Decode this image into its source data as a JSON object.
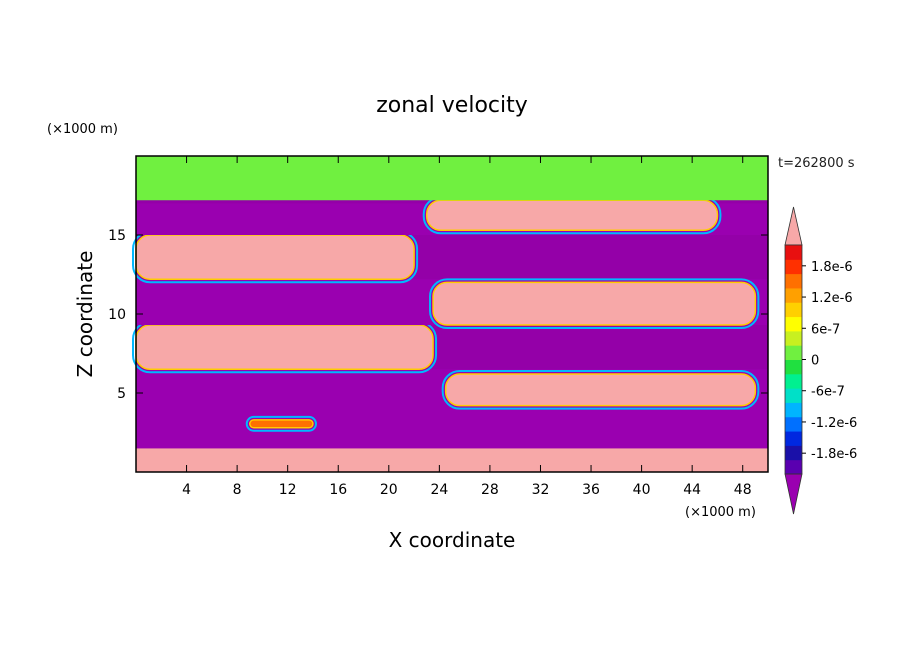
{
  "chart_data": {
    "type": "heatmap",
    "title": "zonal velocity",
    "xlabel": "X coordinate",
    "ylabel": "Z coordinate",
    "x_unit": "(×1000 m)",
    "y_unit": "(×1000 m)",
    "time_label": "t=262800 s",
    "xlim": [
      0,
      50
    ],
    "ylim": [
      0,
      20
    ],
    "x_ticks": [
      "4",
      "8",
      "12",
      "16",
      "20",
      "24",
      "28",
      "32",
      "36",
      "40",
      "44",
      "48"
    ],
    "y_ticks": [
      "5",
      "10",
      "15"
    ],
    "colorbar": {
      "range": [
        -2.2e-06,
        2.2e-06
      ],
      "labels": [
        "1.8e-6",
        "1.2e-6",
        "6e-7",
        "0",
        "-6e-7",
        "-1.2e-6",
        "-1.8e-6"
      ],
      "label_values": [
        1.8e-06,
        1.2e-06,
        6e-07,
        0,
        -6e-07,
        -1.2e-06,
        -1.8e-06
      ],
      "colors": [
        "#9a00b0",
        "#5a00b0",
        "#1a10a8",
        "#0028e0",
        "#0070ff",
        "#00b4ff",
        "#00e0c8",
        "#00f090",
        "#20e040",
        "#70f040",
        "#c8f020",
        "#ffff00",
        "#ffd000",
        "#ffa000",
        "#ff7000",
        "#ff3000",
        "#e81010",
        "#f7a8a8"
      ]
    },
    "regions": [
      {
        "value": 2.2e-06,
        "description": "band",
        "x": [
          0,
          50
        ],
        "z": [
          0,
          1.5
        ]
      },
      {
        "value": -2.2e-06,
        "description": "band",
        "x": [
          0,
          50
        ],
        "z": [
          1.5,
          6.5
        ]
      },
      {
        "value": 2.2e-06,
        "description": "jet",
        "x": [
          0,
          23.5
        ],
        "z": [
          6.5,
          9.3
        ]
      },
      {
        "value": 2.2e-06,
        "description": "jet",
        "x": [
          24.5,
          49
        ],
        "z": [
          4.2,
          6.2
        ]
      },
      {
        "value": -2.2e-06,
        "description": "band",
        "x": [
          0,
          50
        ],
        "z": [
          9.3,
          12.2
        ]
      },
      {
        "value": 2.2e-06,
        "description": "jet",
        "x": [
          0,
          22
        ],
        "z": [
          12.2,
          15
        ]
      },
      {
        "value": 2.2e-06,
        "description": "jet",
        "x": [
          23.5,
          49
        ],
        "z": [
          9.3,
          12
        ]
      },
      {
        "value": -2.2e-06,
        "description": "band",
        "x": [
          0,
          50
        ],
        "z": [
          15,
          17
        ]
      },
      {
        "value": 2.2e-06,
        "description": "jet",
        "x": [
          23,
          46
        ],
        "z": [
          15.3,
          17.2
        ]
      },
      {
        "value": 0,
        "description": "near-zero layer",
        "x": [
          0,
          50
        ],
        "z": [
          17.2,
          20
        ]
      },
      {
        "value": 1.5e-06,
        "description": "small patch",
        "x": [
          9,
          14
        ],
        "z": [
          2.8,
          3.3
        ]
      }
    ]
  }
}
